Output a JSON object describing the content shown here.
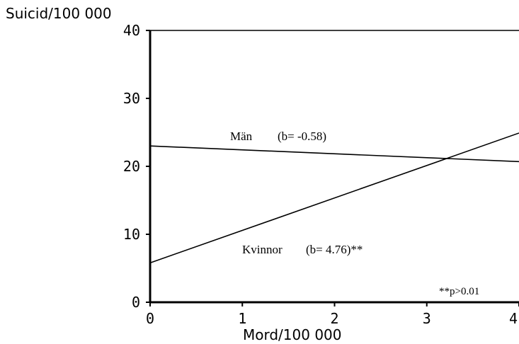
{
  "chart_data": {
    "type": "line",
    "ylabel": "Suicid/100 000",
    "xlabel": "Mord/100 000",
    "xlim": [
      0,
      4
    ],
    "ylim": [
      0,
      40
    ],
    "x_ticks": [
      "0",
      "1",
      "2",
      "3",
      "4"
    ],
    "y_ticks": [
      "0",
      "10",
      "20",
      "30",
      "40"
    ],
    "grid": false,
    "series": [
      {
        "name": "Män",
        "slope_label": "(b= -0.58)",
        "x": [
          0,
          4
        ],
        "y": [
          23.0,
          20.7
        ]
      },
      {
        "name": "Kvinnor",
        "slope_label": "(b= 4.76)**",
        "x": [
          0,
          4
        ],
        "y": [
          5.8,
          24.9
        ]
      }
    ],
    "annotation": "**p>0.01"
  }
}
